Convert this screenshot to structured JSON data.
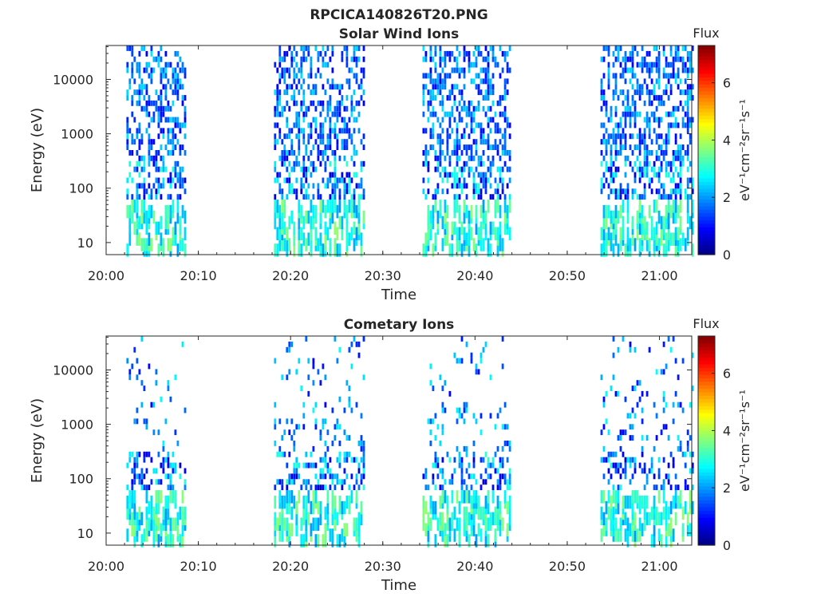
{
  "figure_title": "RPCICA140826T20.PNG",
  "colormap": "jet",
  "chart_data": [
    {
      "type": "heatmap",
      "title": "Solar Wind Ions",
      "xlabel": "Time",
      "ylabel": "Energy (eV)",
      "x_tick_labels": [
        "20:00",
        "20:10",
        "20:20",
        "20:30",
        "20:40",
        "20:50",
        "21:00"
      ],
      "x_range_minutes": [
        0,
        63.5
      ],
      "y_scale": "log",
      "y_tick_values": [
        10,
        100,
        1000,
        10000
      ],
      "y_tick_labels": [
        "10",
        "100",
        "1000",
        "10000"
      ],
      "y_range": [
        6,
        42000
      ],
      "colorbar": {
        "title": "Flux",
        "units": "eV⁻¹cm⁻²sr⁻¹s⁻¹",
        "range": [
          0,
          7.3
        ],
        "tick_labels": [
          "0",
          "2",
          "4",
          "6"
        ]
      },
      "data_intervals_minutes": [
        [
          2.2,
          8.6
        ],
        [
          18.2,
          28.0
        ],
        [
          34.3,
          43.7
        ],
        [
          53.6,
          63.5
        ]
      ],
      "density": "high",
      "typical_flux": [
        0.8,
        2.6
      ]
    },
    {
      "type": "heatmap",
      "title": "Cometary Ions",
      "xlabel": "Time",
      "ylabel": "Energy (eV)",
      "x_tick_labels": [
        "20:00",
        "20:10",
        "20:20",
        "20:30",
        "20:40",
        "20:50",
        "21:00"
      ],
      "x_range_minutes": [
        0,
        63.5
      ],
      "y_scale": "log",
      "y_tick_values": [
        10,
        100,
        1000,
        10000
      ],
      "y_tick_labels": [
        "10",
        "100",
        "1000",
        "10000"
      ],
      "y_range": [
        6,
        42000
      ],
      "colorbar": {
        "title": "Flux",
        "units": "eV⁻¹cm⁻²sr⁻¹s⁻¹",
        "range": [
          0,
          7.3
        ],
        "tick_labels": [
          "0",
          "2",
          "4",
          "6"
        ]
      },
      "data_intervals_minutes": [
        [
          2.2,
          8.6
        ],
        [
          18.2,
          28.0
        ],
        [
          34.3,
          43.7
        ],
        [
          53.6,
          63.5
        ]
      ],
      "density": "low",
      "typical_flux": [
        0.8,
        2.8
      ]
    }
  ]
}
